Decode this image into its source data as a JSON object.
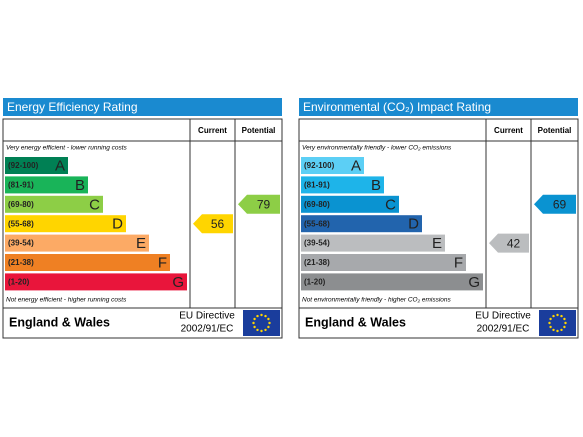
{
  "panels": [
    {
      "title": "Energy Efficiency Rating",
      "headers": [
        "Current",
        "Potential"
      ],
      "top_note": "Very energy efficient - lower running costs",
      "bottom_note": "Not energy efficient - higher running costs",
      "bands": [
        {
          "range": "(92-100)",
          "letter": "A",
          "color": "#008054"
        },
        {
          "range": "(81-91)",
          "letter": "B",
          "color": "#19b459"
        },
        {
          "range": "(69-80)",
          "letter": "C",
          "color": "#8dce46"
        },
        {
          "range": "(55-68)",
          "letter": "D",
          "color": "#ffd500"
        },
        {
          "range": "(39-54)",
          "letter": "E",
          "color": "#fcaa65"
        },
        {
          "range": "(21-38)",
          "letter": "F",
          "color": "#ef8023"
        },
        {
          "range": "(1-20)",
          "letter": "G",
          "color": "#e9153b"
        }
      ],
      "current": 56,
      "potential": 79,
      "footer": {
        "region": "England & Wales",
        "directive": "EU Directive",
        "code": "2002/91/EC"
      }
    },
    {
      "title": "Environmental (CO₂) Impact Rating",
      "headers": [
        "Current",
        "Potential"
      ],
      "top_note": "Very environmentally friendly - lower CO₂ emissions",
      "bottom_note": "Not environmentally friendly - higher CO₂ emissions",
      "bands": [
        {
          "range": "(92-100)",
          "letter": "A",
          "color": "#5ccff5"
        },
        {
          "range": "(81-91)",
          "letter": "B",
          "color": "#1eb4e9"
        },
        {
          "range": "(69-80)",
          "letter": "C",
          "color": "#0a93d1"
        },
        {
          "range": "(55-68)",
          "letter": "D",
          "color": "#2264ad"
        },
        {
          "range": "(39-54)",
          "letter": "E",
          "color": "#bbbdbf"
        },
        {
          "range": "(21-38)",
          "letter": "F",
          "color": "#a7a9ac"
        },
        {
          "range": "(1-20)",
          "letter": "G",
          "color": "#8c8e90"
        }
      ],
      "current": 42,
      "potential": 69,
      "footer": {
        "region": "England & Wales",
        "directive": "EU Directive",
        "code": "2002/91/EC"
      }
    }
  ]
}
